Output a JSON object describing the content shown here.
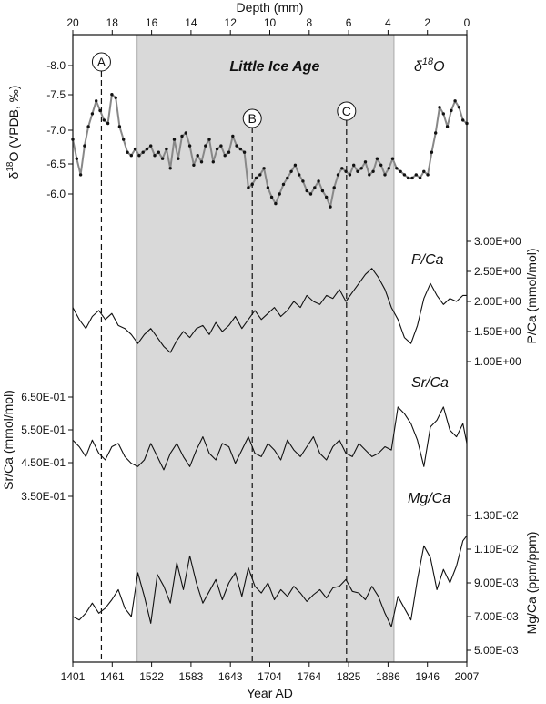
{
  "chart_data": {
    "type": "line",
    "xlabel": "Year AD",
    "x_ticks": [
      "1401",
      "1461",
      "1522",
      "1583",
      "1643",
      "1704",
      "1764",
      "1825",
      "1886",
      "1946",
      "2007"
    ],
    "x_range": [
      1401,
      2007
    ],
    "top_axis": {
      "label": "Depth (mm)",
      "ticks": [
        "20",
        "18",
        "16",
        "14",
        "12",
        "10",
        "8",
        "6",
        "4",
        "2",
        "0"
      ],
      "range": [
        20,
        0
      ]
    },
    "shaded_period": {
      "label": "Little Ice Age",
      "start_year": 1500,
      "end_year": 1895
    },
    "events": [
      {
        "label": "A",
        "year": 1445
      },
      {
        "label": "B",
        "year": 1677
      },
      {
        "label": "C",
        "year": 1822
      }
    ],
    "panels": [
      {
        "name": "d18O",
        "label_main": "δ",
        "label_sup": "18",
        "label_tail": "O",
        "ylabel": "δ18O (VPDB, ‰)",
        "ylabel_parts": [
          "δ",
          "18",
          "O (VPDB, ‰)"
        ],
        "y_ticks": [
          "-8.0",
          "-7.5",
          "-7.0",
          "-6.5",
          "-6.0"
        ],
        "y_inverted": true,
        "ylim": [
          -5.75,
          -8.25
        ],
        "axis_side": "left",
        "markers": true,
        "x": [
          1401,
          1407,
          1413,
          1419,
          1425,
          1431,
          1437,
          1443,
          1449,
          1455,
          1461,
          1467,
          1473,
          1479,
          1485,
          1491,
          1497,
          1503,
          1509,
          1515,
          1521,
          1527,
          1533,
          1539,
          1545,
          1551,
          1557,
          1563,
          1569,
          1575,
          1581,
          1587,
          1593,
          1599,
          1605,
          1611,
          1617,
          1623,
          1629,
          1635,
          1641,
          1647,
          1653,
          1659,
          1665,
          1671,
          1677,
          1683,
          1689,
          1695,
          1701,
          1707,
          1713,
          1719,
          1725,
          1731,
          1737,
          1743,
          1749,
          1755,
          1761,
          1767,
          1773,
          1779,
          1785,
          1791,
          1797,
          1803,
          1809,
          1815,
          1821,
          1827,
          1833,
          1839,
          1845,
          1851,
          1857,
          1863,
          1869,
          1875,
          1881,
          1887,
          1893,
          1899,
          1905,
          1911,
          1917,
          1923,
          1929,
          1935,
          1941,
          1947,
          1953,
          1959,
          1965,
          1971,
          1977,
          1983,
          1989,
          1995,
          2001,
          2007
        ],
        "values": [
          -6.85,
          -6.55,
          -6.3,
          -6.75,
          -7.05,
          -7.25,
          -7.45,
          -7.3,
          -7.15,
          -7.1,
          -7.55,
          -7.5,
          -7.05,
          -6.85,
          -6.65,
          -6.6,
          -6.7,
          -6.6,
          -6.65,
          -6.7,
          -6.75,
          -6.6,
          -6.65,
          -6.55,
          -6.7,
          -6.4,
          -6.85,
          -6.55,
          -6.9,
          -6.95,
          -6.75,
          -6.45,
          -6.6,
          -6.5,
          -6.75,
          -6.85,
          -6.5,
          -6.7,
          -6.75,
          -6.6,
          -6.65,
          -6.9,
          -6.75,
          -6.7,
          -6.65,
          -6.1,
          -6.15,
          -6.25,
          -6.3,
          -6.4,
          -6.1,
          -5.95,
          -5.85,
          -6.0,
          -6.15,
          -6.25,
          -6.35,
          -6.45,
          -6.3,
          -6.2,
          -6.05,
          -6.0,
          -6.1,
          -6.2,
          -6.05,
          -5.95,
          -5.8,
          -6.1,
          -6.3,
          -6.4,
          -6.35,
          -6.3,
          -6.45,
          -6.35,
          -6.4,
          -6.5,
          -6.3,
          -6.35,
          -6.55,
          -6.45,
          -6.3,
          -6.4,
          -6.55,
          -6.4,
          -6.35,
          -6.3,
          -6.25,
          -6.25,
          -6.3,
          -6.25,
          -6.35,
          -6.3,
          -6.65,
          -6.95,
          -7.35,
          -7.25,
          -7.05,
          -7.3,
          -7.45,
          -7.35,
          -7.15,
          -7.1
        ]
      },
      {
        "name": "P/Ca",
        "label": "P/Ca",
        "ylabel": "P/Ca (mmol/mol)",
        "y_ticks": [
          "1.00E+00",
          "1.50E+00",
          "2.00E+00",
          "2.50E+00",
          "3.00E+00"
        ],
        "ylim": [
          1.0,
          3.0
        ],
        "axis_side": "right",
        "markers": false,
        "x": [
          1401,
          1411,
          1421,
          1431,
          1441,
          1451,
          1461,
          1471,
          1481,
          1491,
          1501,
          1511,
          1521,
          1531,
          1541,
          1551,
          1561,
          1571,
          1581,
          1591,
          1601,
          1611,
          1621,
          1631,
          1641,
          1651,
          1661,
          1671,
          1681,
          1691,
          1701,
          1711,
          1721,
          1731,
          1741,
          1751,
          1761,
          1771,
          1781,
          1791,
          1801,
          1811,
          1821,
          1831,
          1841,
          1851,
          1861,
          1871,
          1881,
          1891,
          1901,
          1911,
          1921,
          1931,
          1941,
          1951,
          1961,
          1971,
          1981,
          1991,
          2001,
          2007
        ],
        "values": [
          1.9,
          1.7,
          1.55,
          1.75,
          1.85,
          1.7,
          1.8,
          1.6,
          1.55,
          1.45,
          1.3,
          1.45,
          1.55,
          1.4,
          1.25,
          1.15,
          1.35,
          1.5,
          1.4,
          1.55,
          1.6,
          1.45,
          1.65,
          1.5,
          1.6,
          1.75,
          1.55,
          1.7,
          1.85,
          1.7,
          1.8,
          1.9,
          1.75,
          1.85,
          2.0,
          1.9,
          2.1,
          2.0,
          1.95,
          2.1,
          2.05,
          2.2,
          2.0,
          2.15,
          2.3,
          2.45,
          2.55,
          2.4,
          2.2,
          1.9,
          1.7,
          1.4,
          1.3,
          1.6,
          2.05,
          2.3,
          2.1,
          1.95,
          2.05,
          2.0,
          2.1,
          2.1
        ]
      },
      {
        "name": "Sr/Ca",
        "label": "Sr/Ca",
        "ylabel": "Sr/Ca (mmol/mol)",
        "y_ticks": [
          "3.50E-01",
          "4.50E-01",
          "5.50E-01",
          "6.50E-01"
        ],
        "ylim": [
          0.3,
          0.7
        ],
        "axis_side": "left",
        "markers": false,
        "x": [
          1401,
          1411,
          1421,
          1431,
          1441,
          1451,
          1461,
          1471,
          1481,
          1491,
          1501,
          1511,
          1521,
          1531,
          1541,
          1551,
          1561,
          1571,
          1581,
          1591,
          1601,
          1611,
          1621,
          1631,
          1641,
          1651,
          1661,
          1671,
          1681,
          1691,
          1701,
          1711,
          1721,
          1731,
          1741,
          1751,
          1761,
          1771,
          1781,
          1791,
          1801,
          1811,
          1821,
          1831,
          1841,
          1851,
          1861,
          1871,
          1881,
          1891,
          1901,
          1911,
          1921,
          1931,
          1941,
          1951,
          1961,
          1971,
          1981,
          1991,
          2001,
          2007
        ],
        "values": [
          0.52,
          0.5,
          0.47,
          0.52,
          0.48,
          0.46,
          0.5,
          0.51,
          0.47,
          0.45,
          0.44,
          0.46,
          0.51,
          0.47,
          0.43,
          0.48,
          0.51,
          0.47,
          0.44,
          0.49,
          0.53,
          0.48,
          0.46,
          0.51,
          0.5,
          0.45,
          0.49,
          0.53,
          0.48,
          0.47,
          0.51,
          0.49,
          0.46,
          0.52,
          0.49,
          0.47,
          0.5,
          0.53,
          0.48,
          0.46,
          0.5,
          0.52,
          0.48,
          0.47,
          0.51,
          0.49,
          0.47,
          0.48,
          0.5,
          0.49,
          0.62,
          0.6,
          0.57,
          0.52,
          0.44,
          0.56,
          0.58,
          0.62,
          0.55,
          0.53,
          0.57,
          0.51
        ]
      },
      {
        "name": "Mg/Ca",
        "label": "Mg/Ca",
        "ylabel": "Mg/Ca (ppm/ppm)",
        "y_ticks": [
          "5.00E-03",
          "7.00E-03",
          "9.00E-03",
          "1.10E-02",
          "1.30E-02"
        ],
        "ylim": [
          0.005,
          0.013
        ],
        "axis_side": "right",
        "markers": false,
        "x": [
          1401,
          1411,
          1421,
          1431,
          1441,
          1451,
          1461,
          1471,
          1481,
          1491,
          1501,
          1511,
          1521,
          1531,
          1541,
          1551,
          1561,
          1571,
          1581,
          1591,
          1601,
          1611,
          1621,
          1631,
          1641,
          1651,
          1661,
          1671,
          1681,
          1691,
          1701,
          1711,
          1721,
          1731,
          1741,
          1751,
          1761,
          1771,
          1781,
          1791,
          1801,
          1811,
          1821,
          1831,
          1841,
          1851,
          1861,
          1871,
          1881,
          1891,
          1901,
          1911,
          1921,
          1931,
          1941,
          1951,
          1961,
          1971,
          1981,
          1991,
          2001,
          2007
        ],
        "values": [
          0.007,
          0.0068,
          0.0072,
          0.0078,
          0.0072,
          0.0075,
          0.008,
          0.0086,
          0.0075,
          0.007,
          0.0096,
          0.0082,
          0.0066,
          0.0095,
          0.0088,
          0.0078,
          0.0102,
          0.0086,
          0.0106,
          0.009,
          0.0078,
          0.0085,
          0.0092,
          0.008,
          0.009,
          0.0096,
          0.0082,
          0.0099,
          0.0088,
          0.0084,
          0.009,
          0.008,
          0.0086,
          0.0082,
          0.0088,
          0.0084,
          0.0079,
          0.0083,
          0.0086,
          0.0081,
          0.0087,
          0.0088,
          0.0092,
          0.0085,
          0.0084,
          0.008,
          0.0088,
          0.0082,
          0.0072,
          0.0064,
          0.0082,
          0.0075,
          0.0068,
          0.0092,
          0.0112,
          0.0105,
          0.0086,
          0.0098,
          0.009,
          0.01,
          0.0115,
          0.0118
        ]
      }
    ]
  }
}
